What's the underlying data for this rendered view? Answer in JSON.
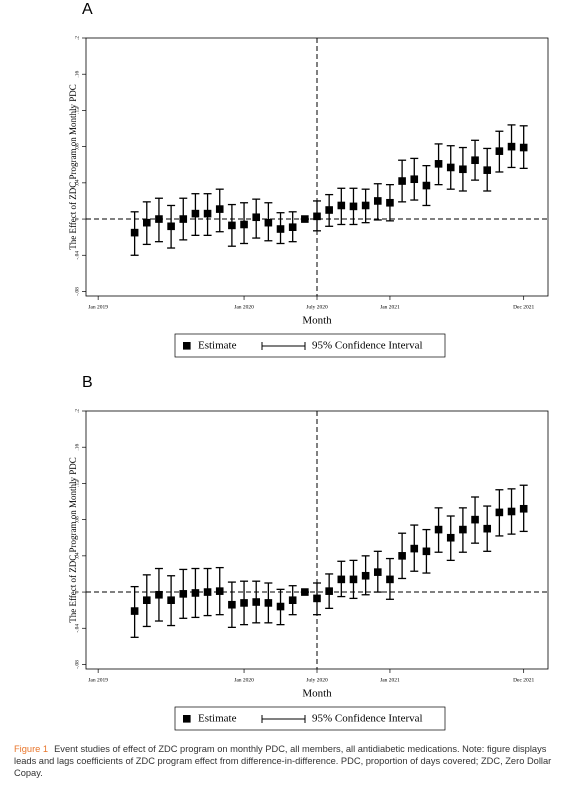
{
  "chart_data": [
    {
      "type": "errorbar",
      "panel_label": "A",
      "y_label": "The Effect of ZDC Program on Monthly PDC",
      "x_label": "Month",
      "x": [
        3,
        4,
        5,
        6,
        7,
        8,
        9,
        10,
        11,
        12,
        13,
        14,
        15,
        16,
        17,
        18,
        19,
        20,
        21,
        22,
        23,
        24,
        25,
        26,
        27,
        28,
        29,
        30,
        31,
        32,
        33,
        34,
        35
      ],
      "series": [
        {
          "name": "Estimate",
          "color": "#000000",
          "values": [
            -0.015,
            -0.004,
            0.0,
            -0.008,
            0.0,
            0.006,
            0.006,
            0.011,
            -0.007,
            -0.006,
            0.002,
            -0.004,
            -0.011,
            -0.009,
            0.0,
            0.003,
            0.01,
            0.015,
            0.014,
            0.015,
            0.02,
            0.018,
            0.042,
            0.044,
            0.037,
            0.061,
            0.057,
            0.055,
            0.065,
            0.054,
            0.075,
            0.08,
            0.079
          ],
          "ci_low": [
            -0.04,
            -0.028,
            -0.025,
            -0.032,
            -0.023,
            -0.018,
            -0.018,
            -0.014,
            -0.03,
            -0.027,
            -0.021,
            -0.024,
            -0.027,
            -0.025,
            0.0,
            -0.013,
            -0.008,
            -0.006,
            -0.006,
            -0.004,
            -0.001,
            -0.002,
            0.019,
            0.021,
            0.015,
            0.038,
            0.033,
            0.031,
            0.043,
            0.031,
            0.052,
            0.057,
            0.056
          ],
          "ci_high": [
            0.008,
            0.019,
            0.023,
            0.015,
            0.023,
            0.028,
            0.028,
            0.033,
            0.016,
            0.018,
            0.022,
            0.018,
            0.007,
            0.008,
            0.0,
            0.02,
            0.027,
            0.034,
            0.034,
            0.033,
            0.039,
            0.038,
            0.065,
            0.067,
            0.059,
            0.083,
            0.081,
            0.079,
            0.087,
            0.078,
            0.097,
            0.104,
            0.103
          ]
        }
      ],
      "ci_name": "95% Confidence Interval",
      "xlim": [
        -1,
        37
      ],
      "xticks": [
        {
          "value": 0,
          "label": "Jan 2019"
        },
        {
          "value": 12,
          "label": "Jan 2020"
        },
        {
          "value": 18,
          "label": "July 2020"
        },
        {
          "value": 24,
          "label": "Jan 2021"
        },
        {
          "value": 35,
          "label": "Dec 2021"
        }
      ],
      "ylim": [
        -0.085,
        0.2
      ],
      "yticks": [
        {
          "value": -0.08,
          "label": "-.08"
        },
        {
          "value": -0.04,
          "label": "-.04"
        },
        0,
        {
          "value": 0.04,
          "label": ".04"
        },
        {
          "value": 0.08,
          "label": ".08"
        },
        {
          "value": 0.12,
          "label": ".12"
        },
        {
          "value": 0.16,
          "label": ".16"
        },
        {
          "value": 0.2,
          "label": ".2"
        }
      ],
      "hline": 0,
      "vline": 18
    },
    {
      "type": "errorbar",
      "panel_label": "B",
      "y_label": "The Effect of ZDC Program on Monthly PDC",
      "x_label": "Month",
      "x": [
        3,
        4,
        5,
        6,
        7,
        8,
        9,
        10,
        11,
        12,
        13,
        14,
        15,
        16,
        17,
        18,
        19,
        20,
        21,
        22,
        23,
        24,
        25,
        26,
        27,
        28,
        29,
        30,
        31,
        32,
        33,
        34,
        35
      ],
      "series": [
        {
          "name": "Estimate",
          "color": "#000000",
          "values": [
            -0.021,
            -0.009,
            -0.003,
            -0.009,
            -0.002,
            -0.001,
            0.0,
            0.001,
            -0.014,
            -0.012,
            -0.011,
            -0.012,
            -0.016,
            -0.009,
            0.0,
            -0.007,
            0.001,
            0.014,
            0.014,
            0.018,
            0.022,
            0.014,
            0.04,
            0.048,
            0.045,
            0.069,
            0.06,
            0.069,
            0.08,
            0.07,
            0.088,
            0.089,
            0.092
          ],
          "ci_low": [
            -0.05,
            -0.038,
            -0.032,
            -0.037,
            -0.029,
            -0.028,
            -0.026,
            -0.025,
            -0.039,
            -0.036,
            -0.034,
            -0.034,
            -0.036,
            -0.025,
            0.0,
            -0.025,
            -0.018,
            -0.005,
            -0.007,
            -0.003,
            0.0,
            -0.008,
            0.015,
            0.023,
            0.021,
            0.044,
            0.035,
            0.044,
            0.054,
            0.045,
            0.062,
            0.064,
            0.067
          ],
          "ci_high": [
            0.006,
            0.019,
            0.026,
            0.018,
            0.025,
            0.026,
            0.026,
            0.027,
            0.011,
            0.012,
            0.012,
            0.01,
            0.003,
            0.007,
            0.0,
            0.01,
            0.02,
            0.034,
            0.035,
            0.04,
            0.045,
            0.037,
            0.065,
            0.074,
            0.069,
            0.093,
            0.084,
            0.093,
            0.105,
            0.095,
            0.113,
            0.114,
            0.118
          ]
        }
      ],
      "ci_name": "95% Confidence Interval",
      "xlim": [
        -1,
        37
      ],
      "xticks": [
        {
          "value": 0,
          "label": "Jan 2019"
        },
        {
          "value": 12,
          "label": "Jan 2020"
        },
        {
          "value": 18,
          "label": "July 2020"
        },
        {
          "value": 24,
          "label": "Jan 2021"
        },
        {
          "value": 35,
          "label": "Dec 2021"
        }
      ],
      "ylim": [
        -0.085,
        0.2
      ],
      "yticks": [
        {
          "value": -0.08,
          "label": "-.08"
        },
        {
          "value": -0.04,
          "label": "-.04"
        },
        0,
        {
          "value": 0.04,
          "label": ".04"
        },
        {
          "value": 0.08,
          "label": ".08"
        },
        {
          "value": 0.12,
          "label": ".12"
        },
        {
          "value": 0.16,
          "label": ".16"
        },
        {
          "value": 0.2,
          "label": ".2"
        }
      ],
      "hline": 0,
      "vline": 18
    }
  ],
  "caption": {
    "label": "Figure 1",
    "text": "Event studies of effect of ZDC program on monthly PDC, all members, all antidiabetic medications. Note: figure displays leads and lags coefficients of ZDC program effect from difference-in-difference. PDC, proportion of days covered; ZDC, Zero Dollar Copay."
  }
}
